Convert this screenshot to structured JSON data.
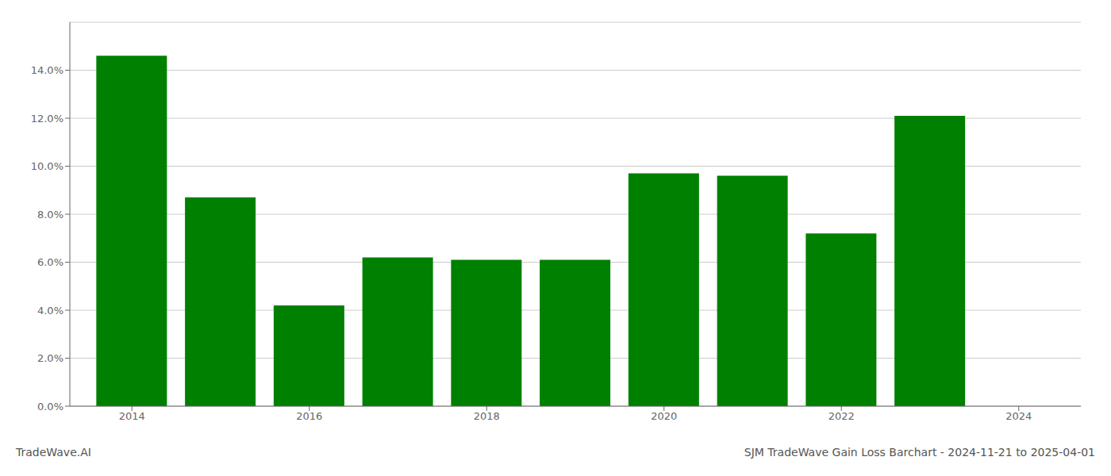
{
  "chart_data": {
    "type": "bar",
    "title": "SJM TradeWave Gain Loss Barchart - 2024-11-21 to 2025-04-01",
    "annotations": [
      "TradeWave.AI"
    ],
    "x": [
      2014,
      2015,
      2016,
      2017,
      2018,
      2019,
      2020,
      2021,
      2022,
      2023
    ],
    "values": [
      0.146,
      0.087,
      0.042,
      0.062,
      0.061,
      0.061,
      0.097,
      0.096,
      0.072,
      0.121
    ],
    "color": "#008000",
    "xlim": [
      2013.3,
      2024.7
    ],
    "xticks": [
      2014,
      2016,
      2018,
      2020,
      2022,
      2024
    ],
    "ylim": [
      0,
      0.16
    ],
    "yticks": [
      {
        "value": 0.0,
        "label": "0.0%"
      },
      {
        "value": 0.02,
        "label": "2.0%"
      },
      {
        "value": 0.04,
        "label": "4.0%"
      },
      {
        "value": 0.06,
        "label": "6.0%"
      },
      {
        "value": 0.08,
        "label": "8.0%"
      },
      {
        "value": 0.1,
        "label": "10.0%"
      },
      {
        "value": 0.12,
        "label": "12.0%"
      },
      {
        "value": 0.14,
        "label": "14.0%"
      }
    ],
    "grid": true
  }
}
